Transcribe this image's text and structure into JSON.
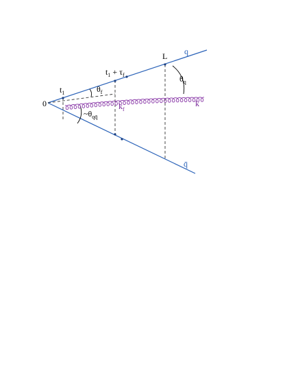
{
  "labels": {
    "origin": "0",
    "start": {
      "main": "t",
      "sub": "1"
    },
    "formation": {
      "main": "t",
      "sub": "1",
      "rest": " + τ",
      "sub2": "f"
    },
    "theta_f": {
      "main": "θ",
      "sub": "f"
    },
    "length": "L",
    "quark": "q",
    "theta_q": {
      "main": "θ",
      "sub": "q"
    },
    "gluon_f": {
      "main": "k",
      "sub": "f"
    },
    "gluon": "k",
    "theta_qqbar": {
      "main": "~θ",
      "sub": "qq̄"
    },
    "antiquark": "q̄"
  }
}
